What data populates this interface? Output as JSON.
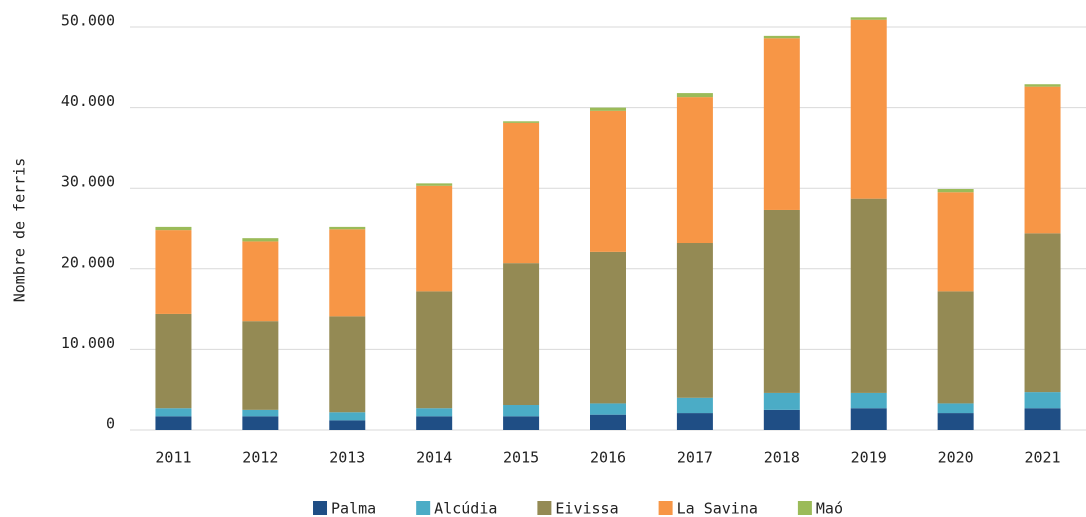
{
  "chart_data": {
    "type": "stacked_bar",
    "y_label": "Nombre de ferris",
    "categories": [
      "2011",
      "2012",
      "2013",
      "2014",
      "2015",
      "2016",
      "2017",
      "2018",
      "2019",
      "2020",
      "2021"
    ],
    "series": [
      {
        "name": "Palma",
        "color": "#1f4e85",
        "values": [
          1700,
          1700,
          1200,
          1700,
          1700,
          1900,
          2100,
          2500,
          2700,
          2100,
          2700
        ]
      },
      {
        "name": "Alcúdia",
        "color": "#4bacc6",
        "values": [
          1000,
          800,
          1000,
          1000,
          1400,
          1400,
          1900,
          2100,
          1900,
          1200,
          2000
        ]
      },
      {
        "name": "Eivissa",
        "color": "#948a54",
        "values": [
          11700,
          11000,
          11900,
          14500,
          17600,
          18800,
          19200,
          22700,
          24100,
          13900,
          19700
        ]
      },
      {
        "name": "La Savina",
        "color": "#f79646",
        "values": [
          10400,
          9900,
          10800,
          13100,
          17400,
          17500,
          18100,
          21300,
          22200,
          12300,
          18200
        ]
      },
      {
        "name": "Maó",
        "color": "#9bbb59",
        "values": [
          400,
          400,
          300,
          300,
          200,
          400,
          500,
          300,
          300,
          400,
          300
        ]
      }
    ],
    "ylim": [
      0,
      50000
    ],
    "yticks": [
      0,
      {
        "value": 10000,
        "label": "10.000"
      },
      {
        "value": 20000,
        "label": "20.000"
      },
      {
        "value": 30000,
        "label": "30.000"
      },
      {
        "value": 40000,
        "label": "40.000"
      },
      {
        "value": 50000,
        "label": "50.000"
      }
    ],
    "grid": true,
    "legend": "bottom"
  }
}
